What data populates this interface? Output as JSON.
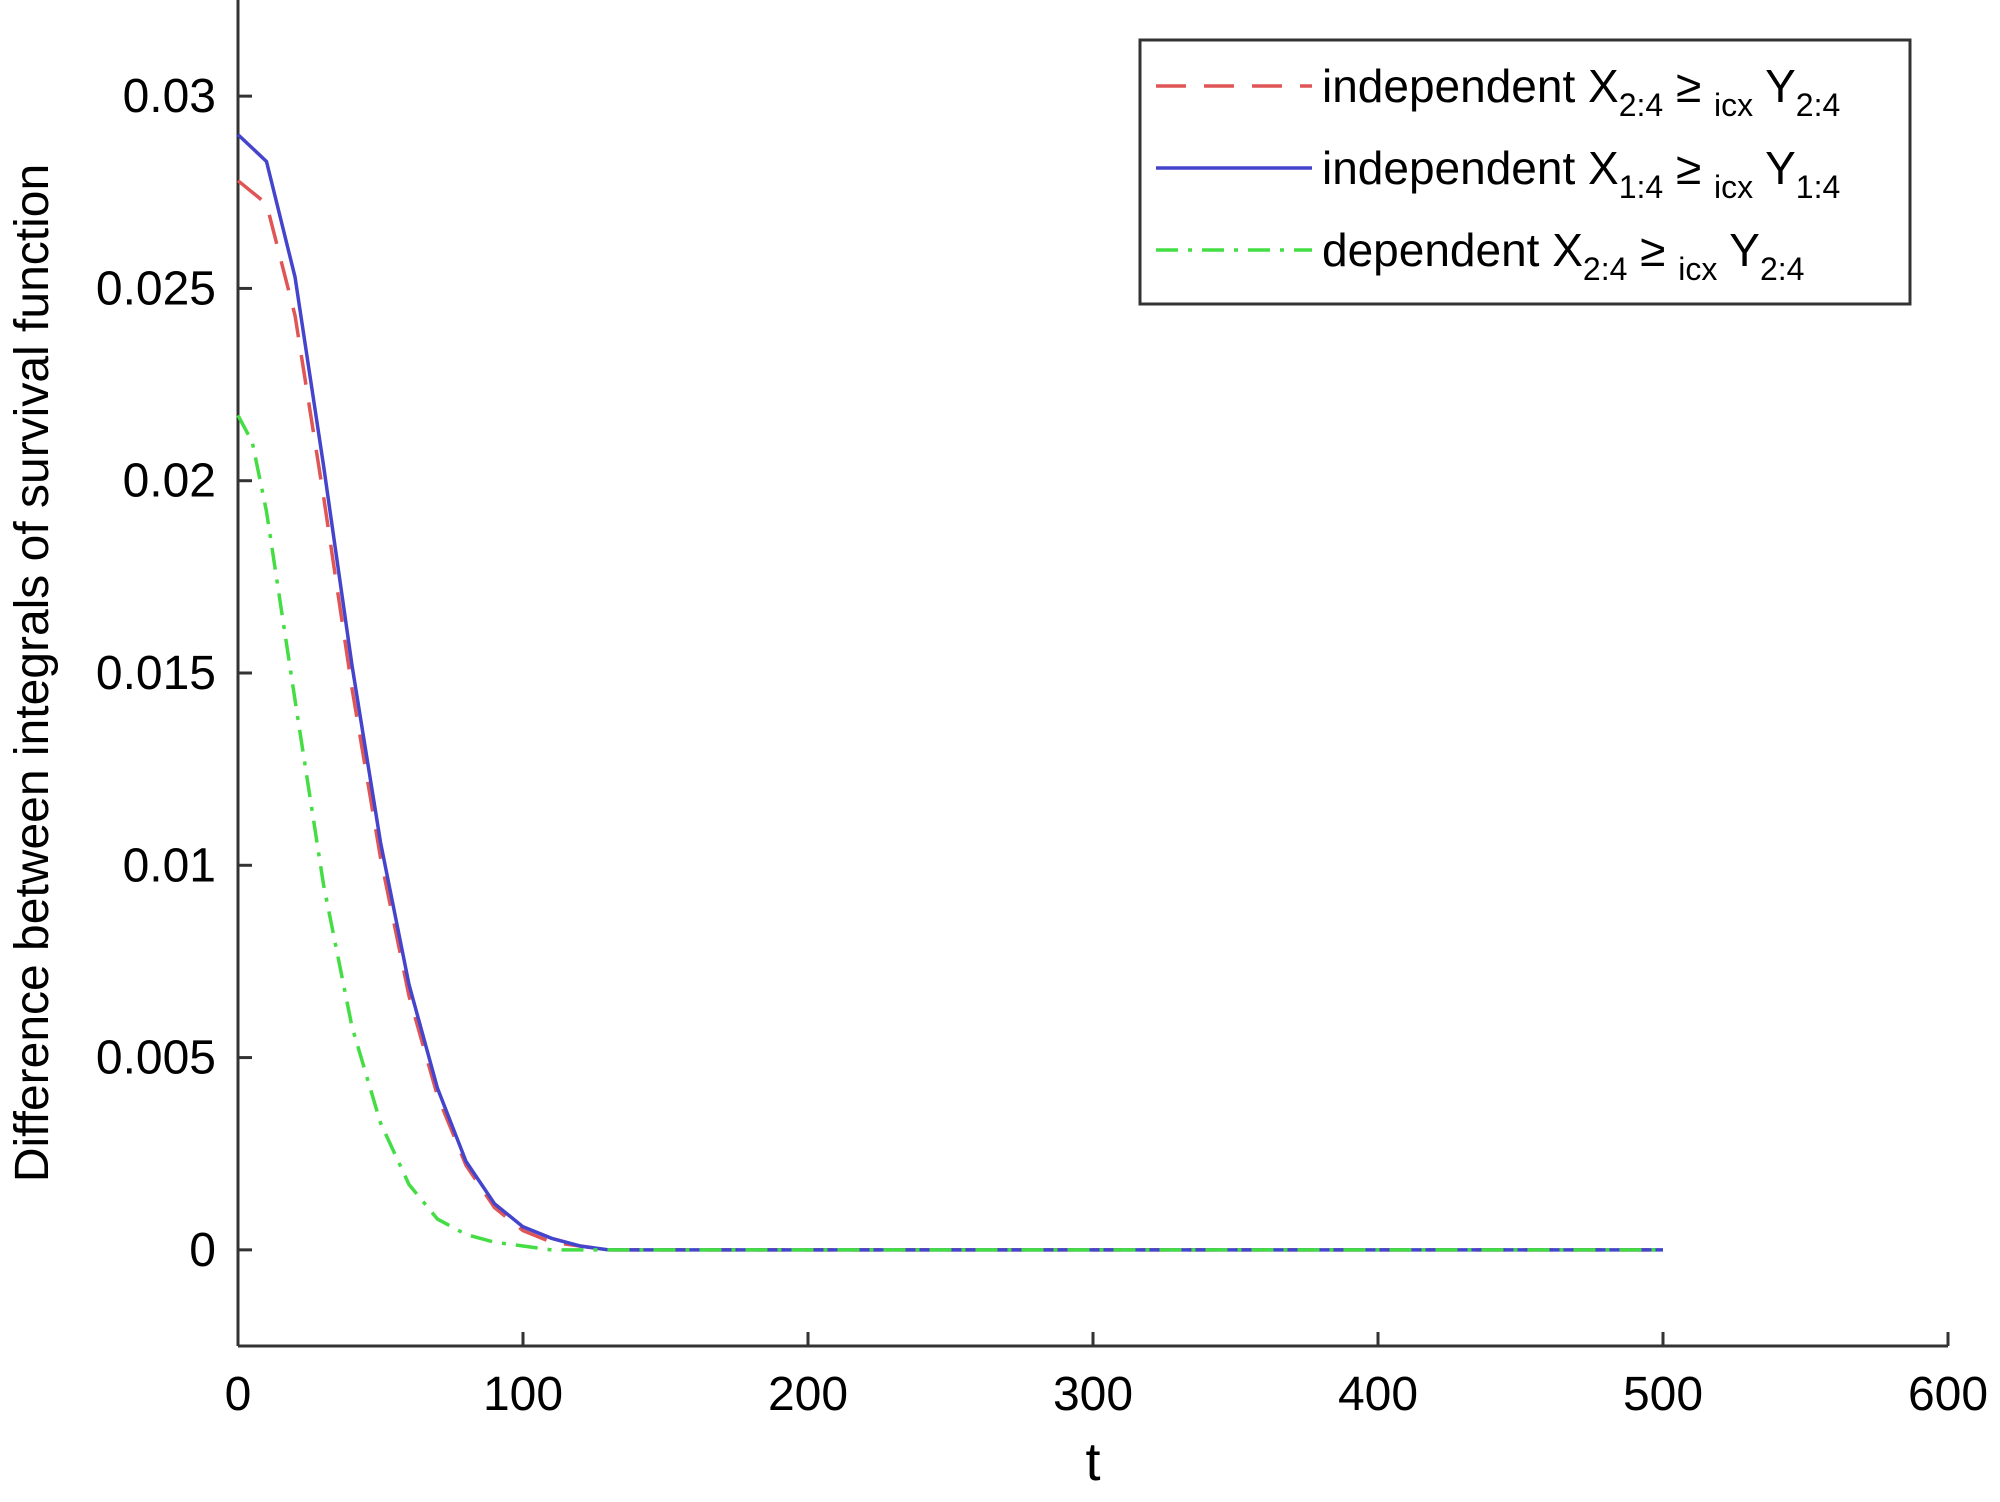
{
  "chart_data": {
    "type": "line",
    "xlabel": "t",
    "ylabel": "Difference between integrals of survival function",
    "xlim": [
      0,
      600
    ],
    "ylim": [
      -0.0025,
      0.0325
    ],
    "xticks": [
      0,
      100,
      200,
      300,
      400,
      500,
      600
    ],
    "xtick_labels": [
      "0",
      "100",
      "200",
      "300",
      "400",
      "500",
      "600"
    ],
    "yticks": [
      0,
      0.005,
      0.01,
      0.015,
      0.02,
      0.025,
      0.03
    ],
    "ytick_labels": [
      "0",
      "0.005",
      "0.01",
      "0.015",
      "0.02",
      "0.025",
      "0.03"
    ],
    "grid": false,
    "legend_position": "top-right",
    "series": [
      {
        "label": {
          "pre": "independent X",
          "sub1": "2:4",
          "rel": "≥",
          "relsub": "icx",
          "var2": "Y",
          "sub2": "2:4"
        },
        "color": "#e05555",
        "style": "dashed",
        "x": [
          0,
          10,
          20,
          30,
          40,
          50,
          60,
          70,
          80,
          90,
          100,
          110,
          120,
          130,
          140,
          150,
          200,
          300,
          400,
          500
        ],
        "y": [
          0.0278,
          0.0272,
          0.0243,
          0.0196,
          0.0146,
          0.0102,
          0.0066,
          0.004,
          0.0022,
          0.0011,
          0.0005,
          0.0002,
          0.0001,
          0.0,
          0.0,
          0.0,
          0.0,
          0.0,
          0.0,
          0.0
        ]
      },
      {
        "label": {
          "pre": "independent X",
          "sub1": "1:4",
          "rel": "≥",
          "relsub": "icx",
          "var2": "Y",
          "sub2": "1:4"
        },
        "color": "#4444cc",
        "style": "solid",
        "x": [
          0,
          10,
          20,
          30,
          40,
          50,
          60,
          70,
          80,
          90,
          100,
          110,
          120,
          130,
          140,
          150,
          200,
          300,
          400,
          500
        ],
        "y": [
          0.029,
          0.0283,
          0.0253,
          0.0204,
          0.0152,
          0.0106,
          0.0069,
          0.0042,
          0.0023,
          0.0012,
          0.0006,
          0.0003,
          0.0001,
          0.0,
          0.0,
          0.0,
          0.0,
          0.0,
          0.0,
          0.0
        ]
      },
      {
        "label": {
          "pre": "dependent X",
          "sub1": "2:4",
          "rel": "≥",
          "relsub": "icx",
          "var2": "Y",
          "sub2": "2:4"
        },
        "color": "#44dd44",
        "style": "dashdot",
        "x": [
          0,
          5,
          10,
          20,
          30,
          40,
          50,
          60,
          70,
          80,
          90,
          100,
          110,
          120,
          140,
          160,
          200,
          300,
          400,
          500
        ],
        "y": [
          0.0217,
          0.021,
          0.0192,
          0.0143,
          0.0095,
          0.0058,
          0.0033,
          0.0017,
          0.0008,
          0.0004,
          0.0002,
          0.0001,
          0.0,
          0.0,
          0.0,
          0.0,
          0.0,
          0.0,
          0.0,
          0.0
        ]
      }
    ]
  }
}
